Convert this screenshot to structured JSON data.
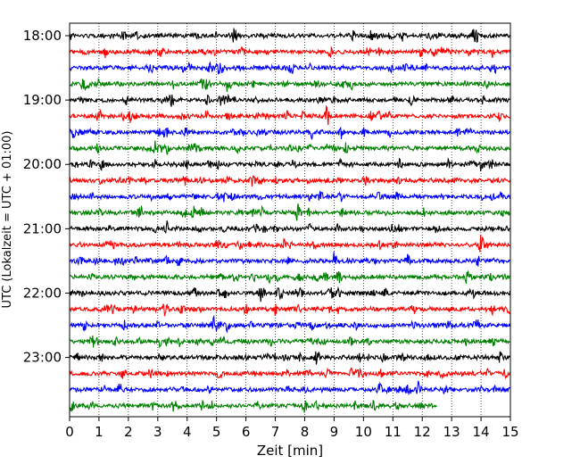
{
  "chart_data": {
    "type": "line",
    "title": "",
    "xlabel": "Zeit  [min]",
    "ylabel": "UTC (Lokalzeit = UTC + 01:00)",
    "xlim": [
      0,
      15
    ],
    "x_ticks": [
      "0",
      "1",
      "2",
      "3",
      "4",
      "5",
      "6",
      "7",
      "8",
      "9",
      "10",
      "11",
      "12",
      "13",
      "14",
      "15"
    ],
    "y_ticks": [
      "18:00",
      "19:00",
      "20:00",
      "21:00",
      "22:00",
      "23:00"
    ],
    "grid": "vertical dotted",
    "colors": [
      "#000000",
      "#ff0000",
      "#0000ff",
      "#008000"
    ],
    "traces": [
      {
        "start": "18:00",
        "end_min": 15
      },
      {
        "start": "18:15",
        "end_min": 15
      },
      {
        "start": "18:30",
        "end_min": 15
      },
      {
        "start": "18:45",
        "end_min": 15
      },
      {
        "start": "19:00",
        "end_min": 15
      },
      {
        "start": "19:15",
        "end_min": 15
      },
      {
        "start": "19:30",
        "end_min": 15
      },
      {
        "start": "19:45",
        "end_min": 15
      },
      {
        "start": "20:00",
        "end_min": 15
      },
      {
        "start": "20:15",
        "end_min": 15
      },
      {
        "start": "20:30",
        "end_min": 15
      },
      {
        "start": "20:45",
        "end_min": 15
      },
      {
        "start": "21:00",
        "end_min": 15
      },
      {
        "start": "21:15",
        "end_min": 15
      },
      {
        "start": "21:30",
        "end_min": 15
      },
      {
        "start": "21:45",
        "end_min": 15
      },
      {
        "start": "22:00",
        "end_min": 15
      },
      {
        "start": "22:15",
        "end_min": 15
      },
      {
        "start": "22:30",
        "end_min": 15
      },
      {
        "start": "22:45",
        "end_min": 15
      },
      {
        "start": "23:00",
        "end_min": 15
      },
      {
        "start": "23:15",
        "end_min": 15
      },
      {
        "start": "23:30",
        "end_min": 15
      },
      {
        "start": "23:45",
        "end_min": 12.5
      }
    ]
  }
}
